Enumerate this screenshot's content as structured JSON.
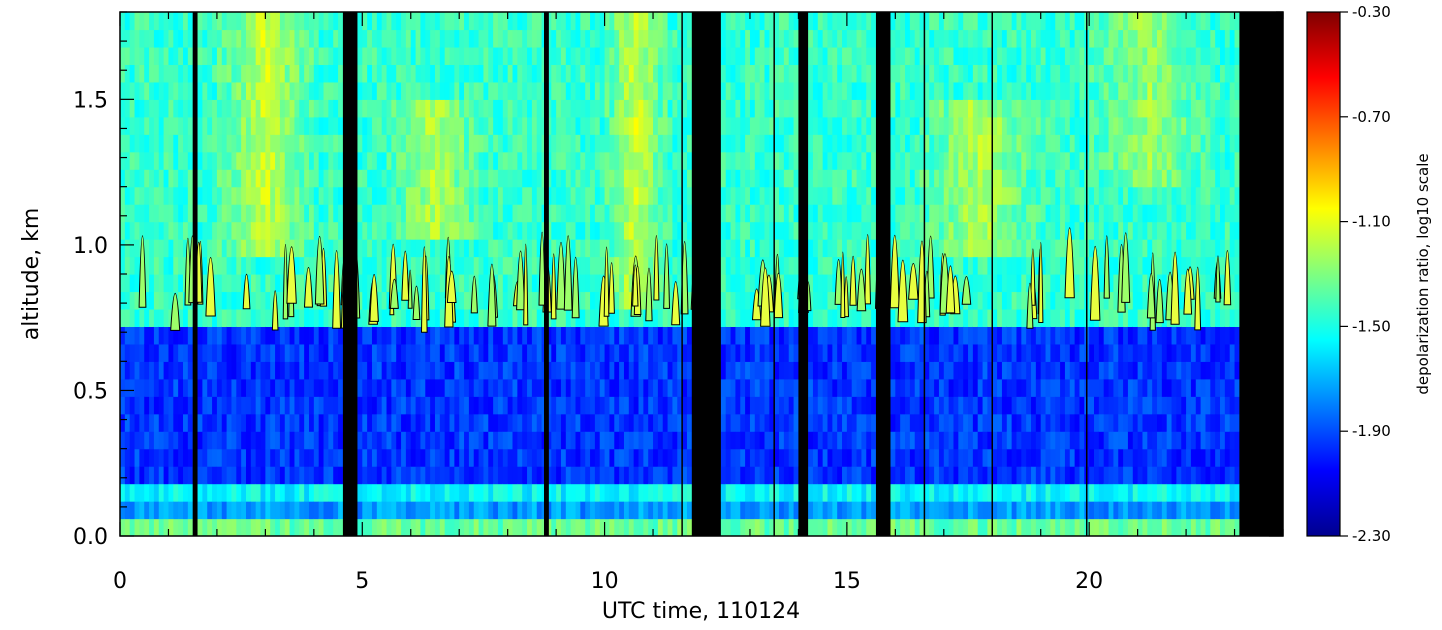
{
  "chart_data": {
    "type": "heatmap",
    "title": "",
    "xlabel": "UTC time, 110124",
    "ylabel": "altitude, km",
    "xlim": [
      0,
      24
    ],
    "ylim": [
      0,
      1.8
    ],
    "x_ticks": [
      0,
      5,
      10,
      15,
      20
    ],
    "x_tick_labels": [
      "0",
      "5",
      "10",
      "15",
      "20"
    ],
    "y_ticks": [
      0.0,
      0.5,
      1.0,
      1.5
    ],
    "y_tick_labels": [
      "0.0",
      "0.5",
      "1.0",
      "1.5"
    ],
    "colorbar": {
      "label": "depolarization ratio, log10 scale",
      "range": [
        -2.3,
        -0.3
      ],
      "ticks": [
        -0.3,
        -0.7,
        -1.1,
        -1.5,
        -1.9,
        -2.3
      ],
      "tick_labels": [
        "-0.30",
        "-0.70",
        "-1.10",
        "-1.50",
        "-1.90",
        "-2.30"
      ],
      "colormap": "jet"
    },
    "no_data_intervals_hours": [
      [
        1.5,
        1.6
      ],
      [
        4.6,
        4.9
      ],
      [
        8.75,
        8.85
      ],
      [
        11.8,
        12.4
      ],
      [
        14.0,
        14.2
      ],
      [
        15.6,
        15.9
      ],
      [
        23.1,
        24.0
      ]
    ],
    "thin_gap_lines_hours": [
      11.6,
      13.5,
      16.6,
      18.0,
      19.95
    ],
    "bands": [
      {
        "altitude_km": [
          0.0,
          0.06
        ],
        "value": -1.35
      },
      {
        "altitude_km": [
          0.06,
          0.12
        ],
        "value": -1.75
      },
      {
        "altitude_km": [
          0.12,
          0.2
        ],
        "value": -1.55
      },
      {
        "altitude_km": [
          0.2,
          0.75
        ],
        "value": -1.95
      },
      {
        "altitude_km": [
          0.75,
          1.8
        ],
        "value": -1.45
      }
    ],
    "enhanced_regions": [
      {
        "time_h": [
          2.0,
          4.0
        ],
        "altitude_km": [
          0.95,
          1.8
        ],
        "value": -1.15
      },
      {
        "time_h": [
          5.5,
          7.5
        ],
        "altitude_km": [
          1.0,
          1.5
        ],
        "value": -1.2
      },
      {
        "time_h": [
          10.0,
          11.3
        ],
        "altitude_km": [
          0.8,
          1.8
        ],
        "value": -1.15
      },
      {
        "time_h": [
          16.5,
          19.0
        ],
        "altitude_km": [
          0.95,
          1.5
        ],
        "value": -1.2
      },
      {
        "time_h": [
          20.0,
          22.5
        ],
        "altitude_km": [
          1.2,
          1.8
        ],
        "value": -1.25
      }
    ],
    "legend": "none"
  },
  "colors": {
    "axis": "#000000",
    "no_data": "#000000",
    "cloud_contour": "#000000"
  }
}
